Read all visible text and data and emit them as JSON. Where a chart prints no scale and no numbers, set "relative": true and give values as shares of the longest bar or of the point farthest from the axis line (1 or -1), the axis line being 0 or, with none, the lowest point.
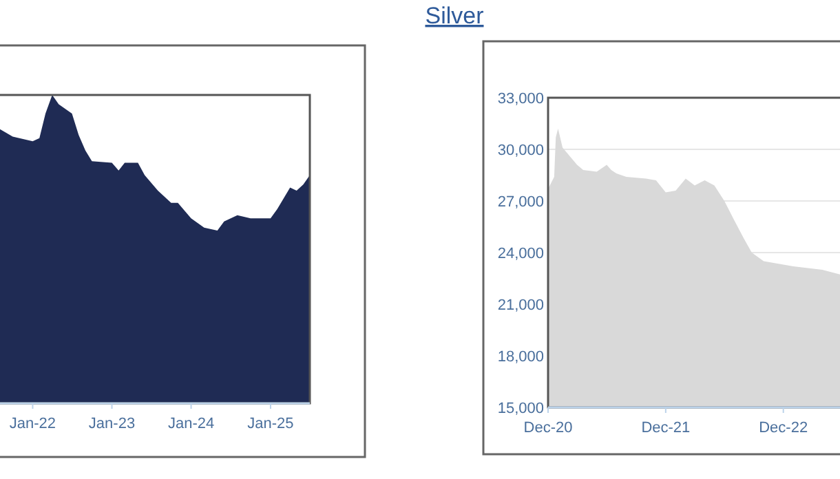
{
  "chart_data": [
    {
      "type": "area",
      "relative": true,
      "color": "#1f2b54",
      "grid": false,
      "x": [
        "2021-06",
        "2021-08",
        "2021-10",
        "2022-01",
        "2022-02",
        "2022-03",
        "2022-04",
        "2022-05",
        "2022-07",
        "2022-08",
        "2022-09",
        "2022-10",
        "2023-01",
        "2023-02",
        "2023-03",
        "2023-05",
        "2023-06",
        "2023-08",
        "2023-10",
        "2023-11",
        "2024-01",
        "2024-03",
        "2024-05",
        "2024-06",
        "2024-08",
        "2024-10",
        "2025-01",
        "2025-02",
        "2025-04",
        "2025-05",
        "2025-06",
        "2025-07"
      ],
      "values": [
        0.9,
        0.89,
        0.865,
        0.85,
        0.86,
        0.94,
        1.0,
        0.97,
        0.94,
        0.87,
        0.82,
        0.785,
        0.78,
        0.755,
        0.78,
        0.78,
        0.74,
        0.69,
        0.65,
        0.65,
        0.6,
        0.57,
        0.56,
        0.59,
        0.61,
        0.6,
        0.6,
        0.63,
        0.7,
        0.69,
        0.71,
        0.74
      ],
      "xlim": [
        "2021-06",
        "2025-07"
      ],
      "xticks": [
        {
          "value": "2022-01",
          "label": "Jan-22"
        },
        {
          "value": "2023-01",
          "label": "Jan-23"
        },
        {
          "value": "2024-01",
          "label": "Jan-24"
        },
        {
          "value": "2025-01",
          "label": "Jan-25"
        }
      ]
    },
    {
      "type": "area",
      "title": "Silver",
      "color": "#d9d9d9",
      "grid": "y",
      "x": [
        "2020-12",
        "2020-12-20",
        "2020-12-25",
        "2021-01",
        "2021-01-15",
        "2021-03",
        "2021-03-20",
        "2021-05",
        "2021-06",
        "2021-06-15",
        "2021-07",
        "2021-08",
        "2021-10",
        "2021-11",
        "2021-12",
        "2022-01",
        "2022-02",
        "2022-03",
        "2022-04",
        "2022-05",
        "2022-06",
        "2022-07",
        "2022-08",
        "2022-08-25",
        "2022-10",
        "2023-01",
        "2023-04",
        "2023-06",
        "2023-08",
        "2023-09",
        "2023-10"
      ],
      "values": [
        27700,
        28400,
        30700,
        31200,
        30100,
        29100,
        28800,
        28700,
        29100,
        28800,
        28600,
        28400,
        28300,
        28200,
        27500,
        27600,
        28300,
        27900,
        28200,
        27900,
        27000,
        25900,
        24800,
        24000,
        23500,
        23200,
        23000,
        22700,
        22600,
        22200,
        22400
      ],
      "xlim": [
        "2020-12",
        "2023-10"
      ],
      "xticks": [
        {
          "value": "2020-12",
          "label": "Dec-20"
        },
        {
          "value": "2021-12",
          "label": "Dec-21"
        },
        {
          "value": "2022-12",
          "label": "Dec-22"
        }
      ],
      "ylim": [
        15000,
        33000
      ],
      "yticks": [
        {
          "value": 15000,
          "label": "15,000"
        },
        {
          "value": 18000,
          "label": "18,000"
        },
        {
          "value": 21000,
          "label": "21,000"
        },
        {
          "value": 24000,
          "label": "24,000"
        },
        {
          "value": 27000,
          "label": "27,000"
        },
        {
          "value": 30000,
          "label": "30,000"
        },
        {
          "value": 33000,
          "label": "33,000"
        }
      ]
    }
  ]
}
